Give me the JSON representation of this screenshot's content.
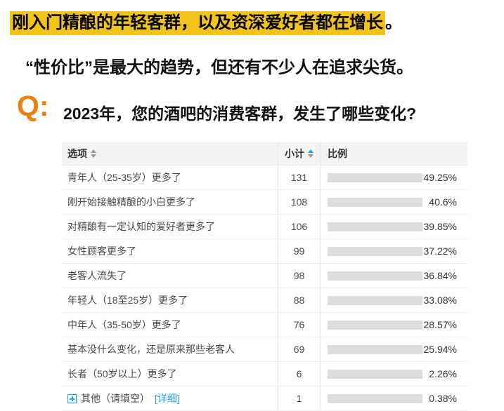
{
  "colors": {
    "highlight_yellow": "#F2C41A",
    "q_orange": "#E8820E",
    "bar_blue": "#1E9FFF",
    "bar_track_gray": "#DCDCDC",
    "link_blue": "#1E9FFF",
    "header_bg": "#F4F4F4"
  },
  "headline": {
    "highlighted_text": "刚入门精酿的年轻客群，以及资深爱好者都在增长",
    "trailing_text": "。"
  },
  "subheadline": {
    "text": "“性价比”是最大的趋势，但还有不少人在追求尖货。"
  },
  "question": {
    "prefix": "Q:",
    "text": "2023年，您的酒吧的消费客群，发生了哪些变化?"
  },
  "table": {
    "headers": {
      "option": "选项",
      "count": "小计",
      "ratio": "比例"
    },
    "rows": [
      {
        "label": "青年人（25-35岁）更多了",
        "count": "131",
        "percent": "49.25%"
      },
      {
        "label": "刚开始接触精酿的小白更多了",
        "count": "108",
        "percent": "40.6%"
      },
      {
        "label": "对精酿有一定认知的爱好者更多了",
        "count": "106",
        "percent": "39.85%"
      },
      {
        "label": "女性顾客更多了",
        "count": "99",
        "percent": "37.22%"
      },
      {
        "label": "老客人流失了",
        "count": "98",
        "percent": "36.84%"
      },
      {
        "label": "年轻人（18至25岁）更多了",
        "count": "88",
        "percent": "33.08%"
      },
      {
        "label": "中年人（35-50岁）更多了",
        "count": "76",
        "percent": "28.57%"
      },
      {
        "label": "基本没什么变化，还是原来那些老客人",
        "count": "69",
        "percent": "25.94%"
      },
      {
        "label": "长者（50岁以上）更多了",
        "count": "6",
        "percent": "2.26%"
      },
      {
        "label": "其他（请填空）",
        "count": "1",
        "percent": "0.38%",
        "expandable": true,
        "detail_link": "[详细]"
      }
    ]
  },
  "chart_data": {
    "type": "bar",
    "title": "2023年，您的酒吧的消费客群，发生了哪些变化?",
    "orientation": "horizontal",
    "categories": [
      "青年人（25-35岁）更多了",
      "刚开始接触精酿的小白更多了",
      "对精酿有一定认知的爱好者更多了",
      "女性顾客更多了",
      "老客人流失了",
      "年轻人（18至25岁）更多了",
      "中年人（35-50岁）更多了",
      "基本没什么变化，还是原来那些老客人",
      "长者（50岁以上）更多了",
      "其他（请填空）"
    ],
    "series": [
      {
        "name": "小计",
        "values": [
          131,
          108,
          106,
          99,
          98,
          88,
          76,
          69,
          6,
          1
        ]
      },
      {
        "name": "比例(%)",
        "values": [
          49.25,
          40.6,
          39.85,
          37.22,
          36.84,
          33.08,
          28.57,
          25.94,
          2.26,
          0.38
        ]
      }
    ],
    "xlim": [
      0,
      100
    ],
    "legend": false,
    "grid": false
  }
}
